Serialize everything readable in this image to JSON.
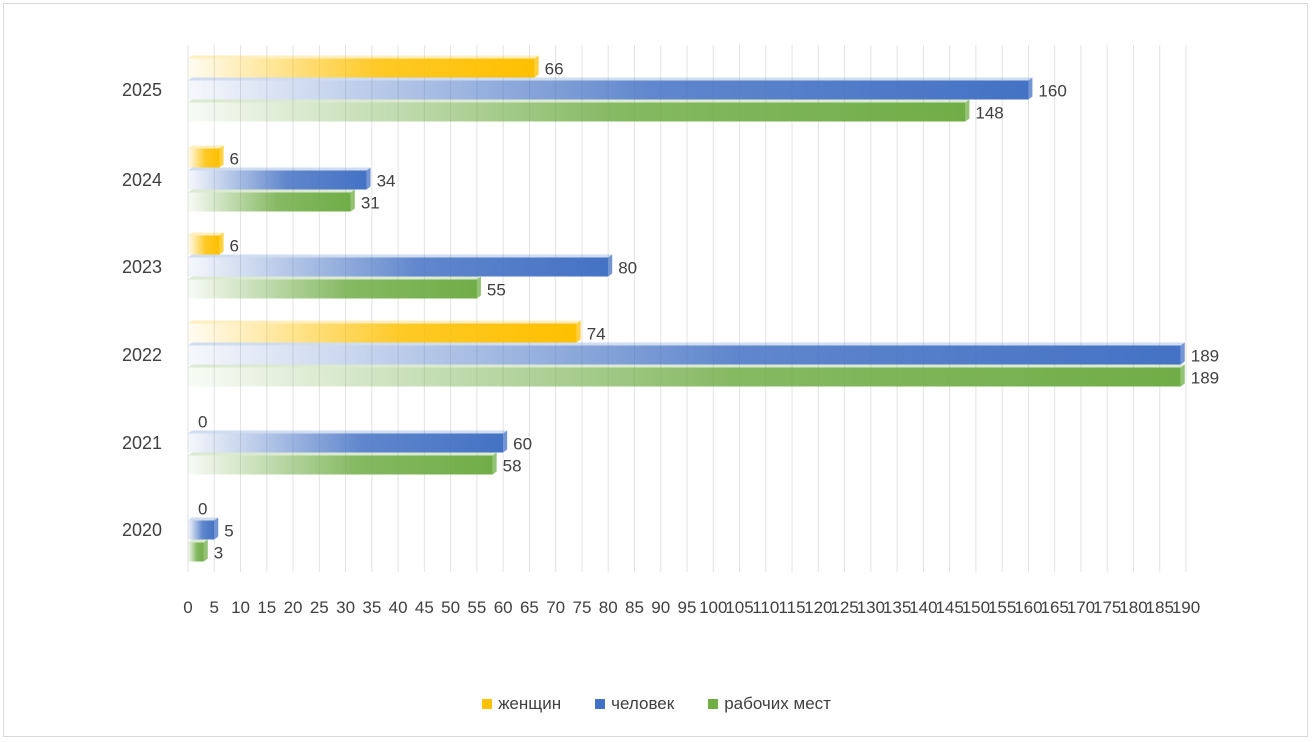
{
  "chart_data": {
    "type": "bar",
    "orientation": "horizontal",
    "categories": [
      "2020",
      "2021",
      "2022",
      "2023",
      "2024",
      "2025"
    ],
    "series": [
      {
        "name": "женщин",
        "color": "#FFC000",
        "values": [
          0,
          0,
          74,
          6,
          6,
          66
        ]
      },
      {
        "name": "человек",
        "color": "#4472C4",
        "values": [
          5,
          60,
          189,
          80,
          34,
          160
        ]
      },
      {
        "name": "рабочих мест",
        "color": "#70AD47",
        "values": [
          3,
          58,
          189,
          55,
          31,
          148
        ]
      }
    ],
    "xlim": [
      0,
      190
    ],
    "x_ticks": [
      0,
      5,
      10,
      15,
      20,
      25,
      30,
      35,
      40,
      45,
      50,
      55,
      60,
      65,
      70,
      75,
      80,
      85,
      90,
      95,
      100,
      105,
      110,
      115,
      120,
      125,
      130,
      135,
      140,
      145,
      150,
      155,
      160,
      165,
      170,
      175,
      180,
      185,
      190
    ],
    "grid": "vertical",
    "legend_position": "bottom"
  }
}
